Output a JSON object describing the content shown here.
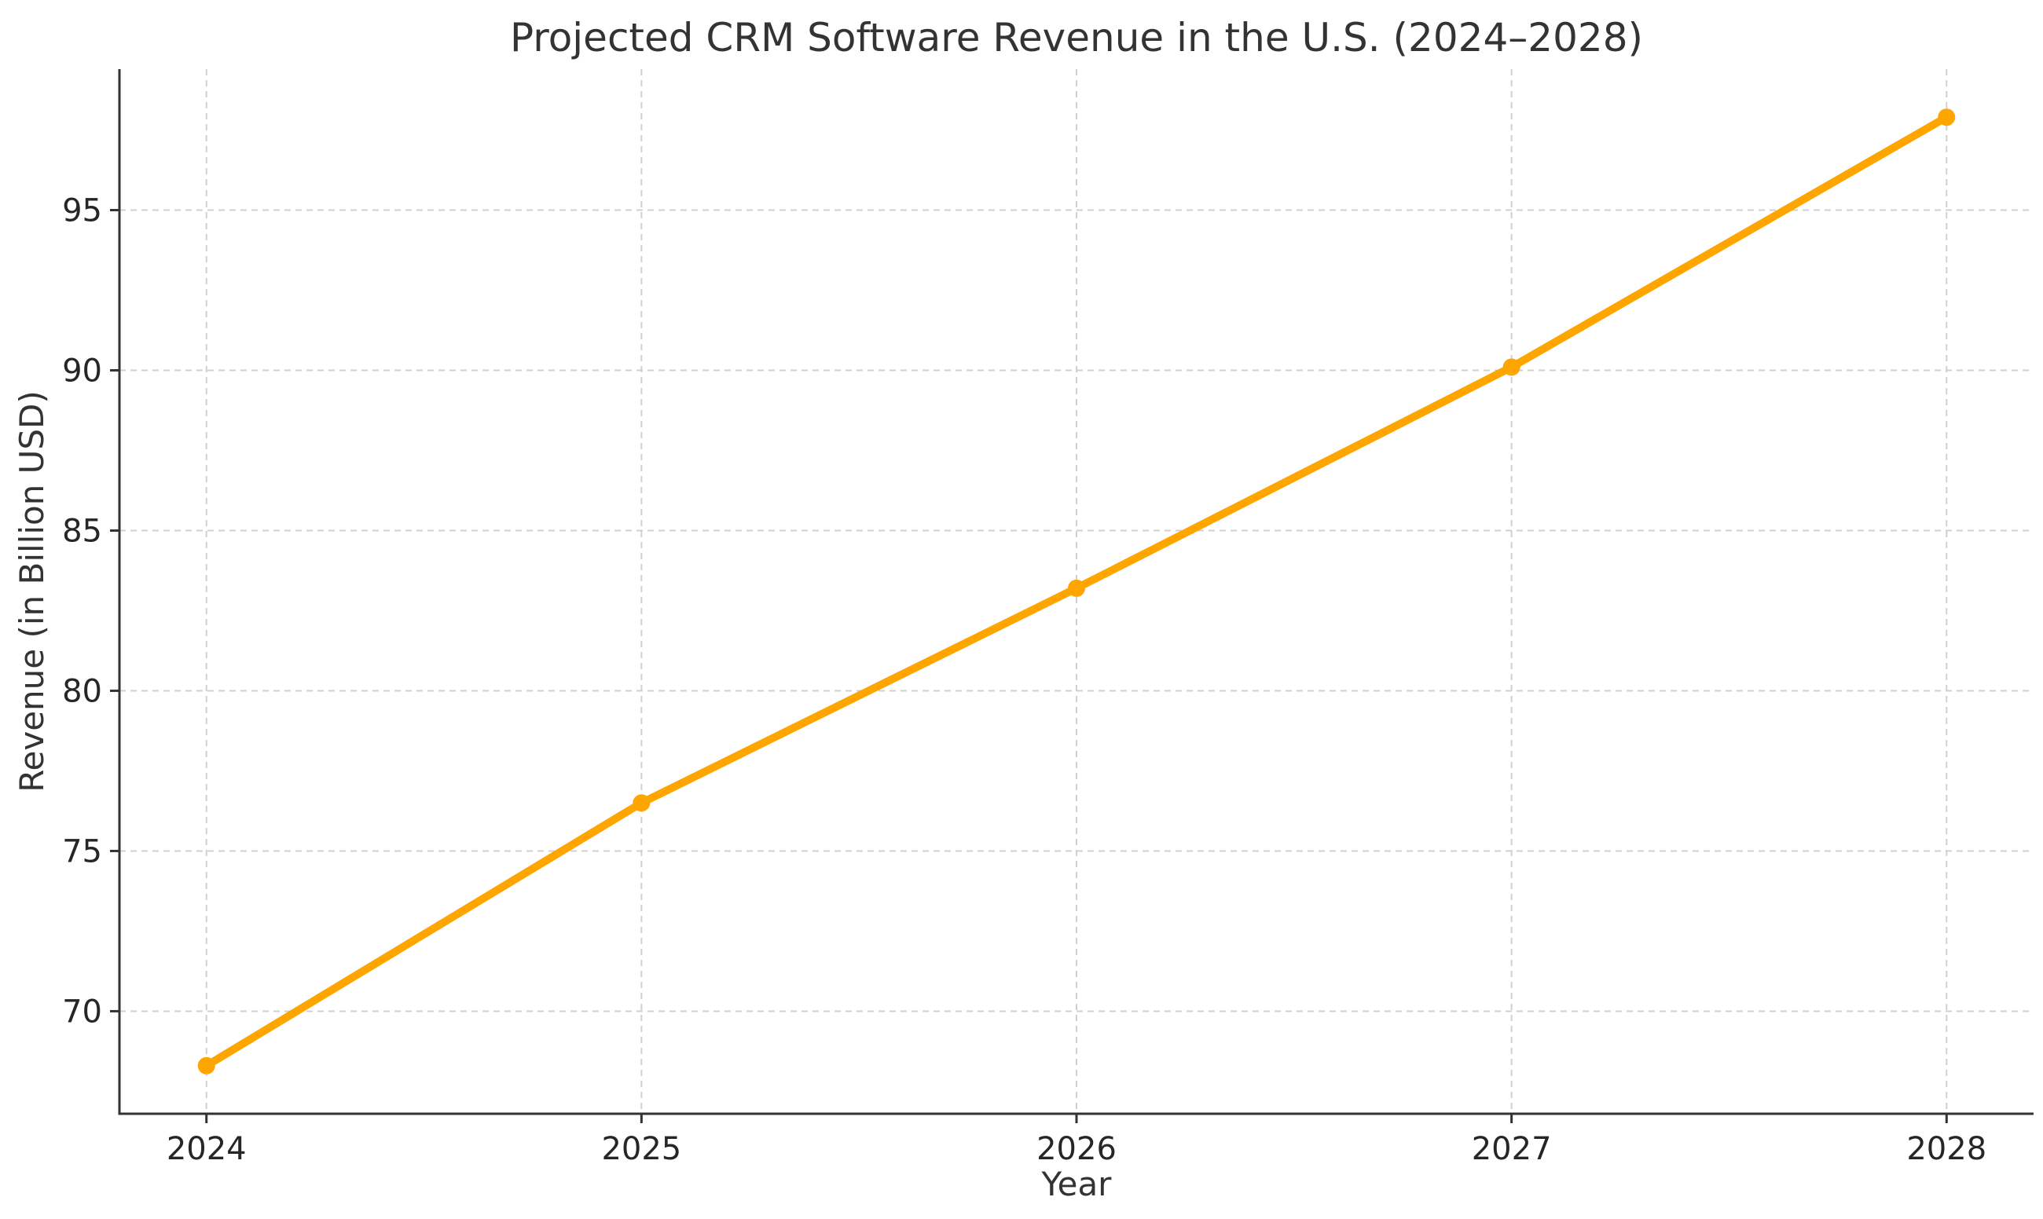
{
  "chart_data": {
    "type": "line",
    "title": "Projected CRM Software Revenue in the U.S. (2024–2028)",
    "xlabel": "Year",
    "ylabel": "Revenue (in Billion USD)",
    "x": [
      2024,
      2025,
      2026,
      2027,
      2028
    ],
    "x_tick_labels": [
      "2024",
      "2025",
      "2026",
      "2027",
      "2028"
    ],
    "y_ticks": [
      70,
      75,
      80,
      85,
      90,
      95
    ],
    "y_tick_labels": [
      "70",
      "75",
      "80",
      "85",
      "90",
      "95"
    ],
    "xlim": [
      2023.8,
      2028.2
    ],
    "ylim": [
      66.8,
      99.4
    ],
    "grid": true,
    "series": [
      {
        "values": [
          68.3,
          76.5,
          83.2,
          90.1,
          97.9
        ],
        "color": "#FFA500"
      }
    ]
  }
}
